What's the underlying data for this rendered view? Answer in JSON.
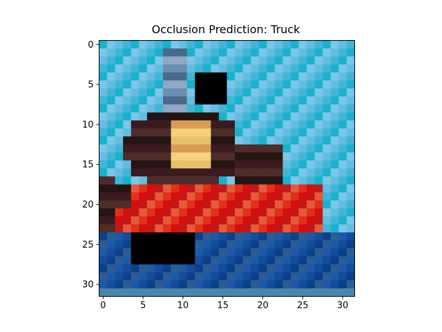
{
  "chart_data": {
    "type": "heatmap",
    "title": "Occlusion Prediction: Truck",
    "xlabel": "",
    "ylabel": "",
    "grid": false,
    "rows": 32,
    "cols": 32,
    "xlim": [
      -0.5,
      31.5
    ],
    "ylim": [
      31.5,
      -0.5
    ],
    "xticks": [
      0,
      5,
      10,
      15,
      20,
      25,
      30
    ],
    "yticks": [
      0,
      5,
      10,
      15,
      20,
      25,
      30
    ],
    "occluded_patches": [
      {
        "x0": 12,
        "x1": 15,
        "y0": 4,
        "y1": 7,
        "color": "#000000"
      },
      {
        "x0": 4,
        "x1": 11,
        "y0": 24,
        "y1": 27,
        "color": "#000000"
      }
    ],
    "image_regions": {
      "sky_colors": [
        "#17b2cc",
        "#3fb6d6",
        "#63bde0",
        "#7cc6e6"
      ],
      "hull_red": [
        "#d40f0f",
        "#e0301a",
        "#e65a3c",
        "#c21818"
      ],
      "cabin_dark": [
        "#241414",
        "#3a1b1f",
        "#4e2c2a"
      ],
      "cabin_light": [
        "#e8c06a",
        "#d99b52",
        "#f3d27a"
      ],
      "water_colors": [
        "#0e3f8a",
        "#144c9b",
        "#1a5aa8",
        "#2a5e93"
      ],
      "mast_colors": [
        "#6a8fb0",
        "#4a6a8c",
        "#8fa9c4"
      ]
    }
  }
}
